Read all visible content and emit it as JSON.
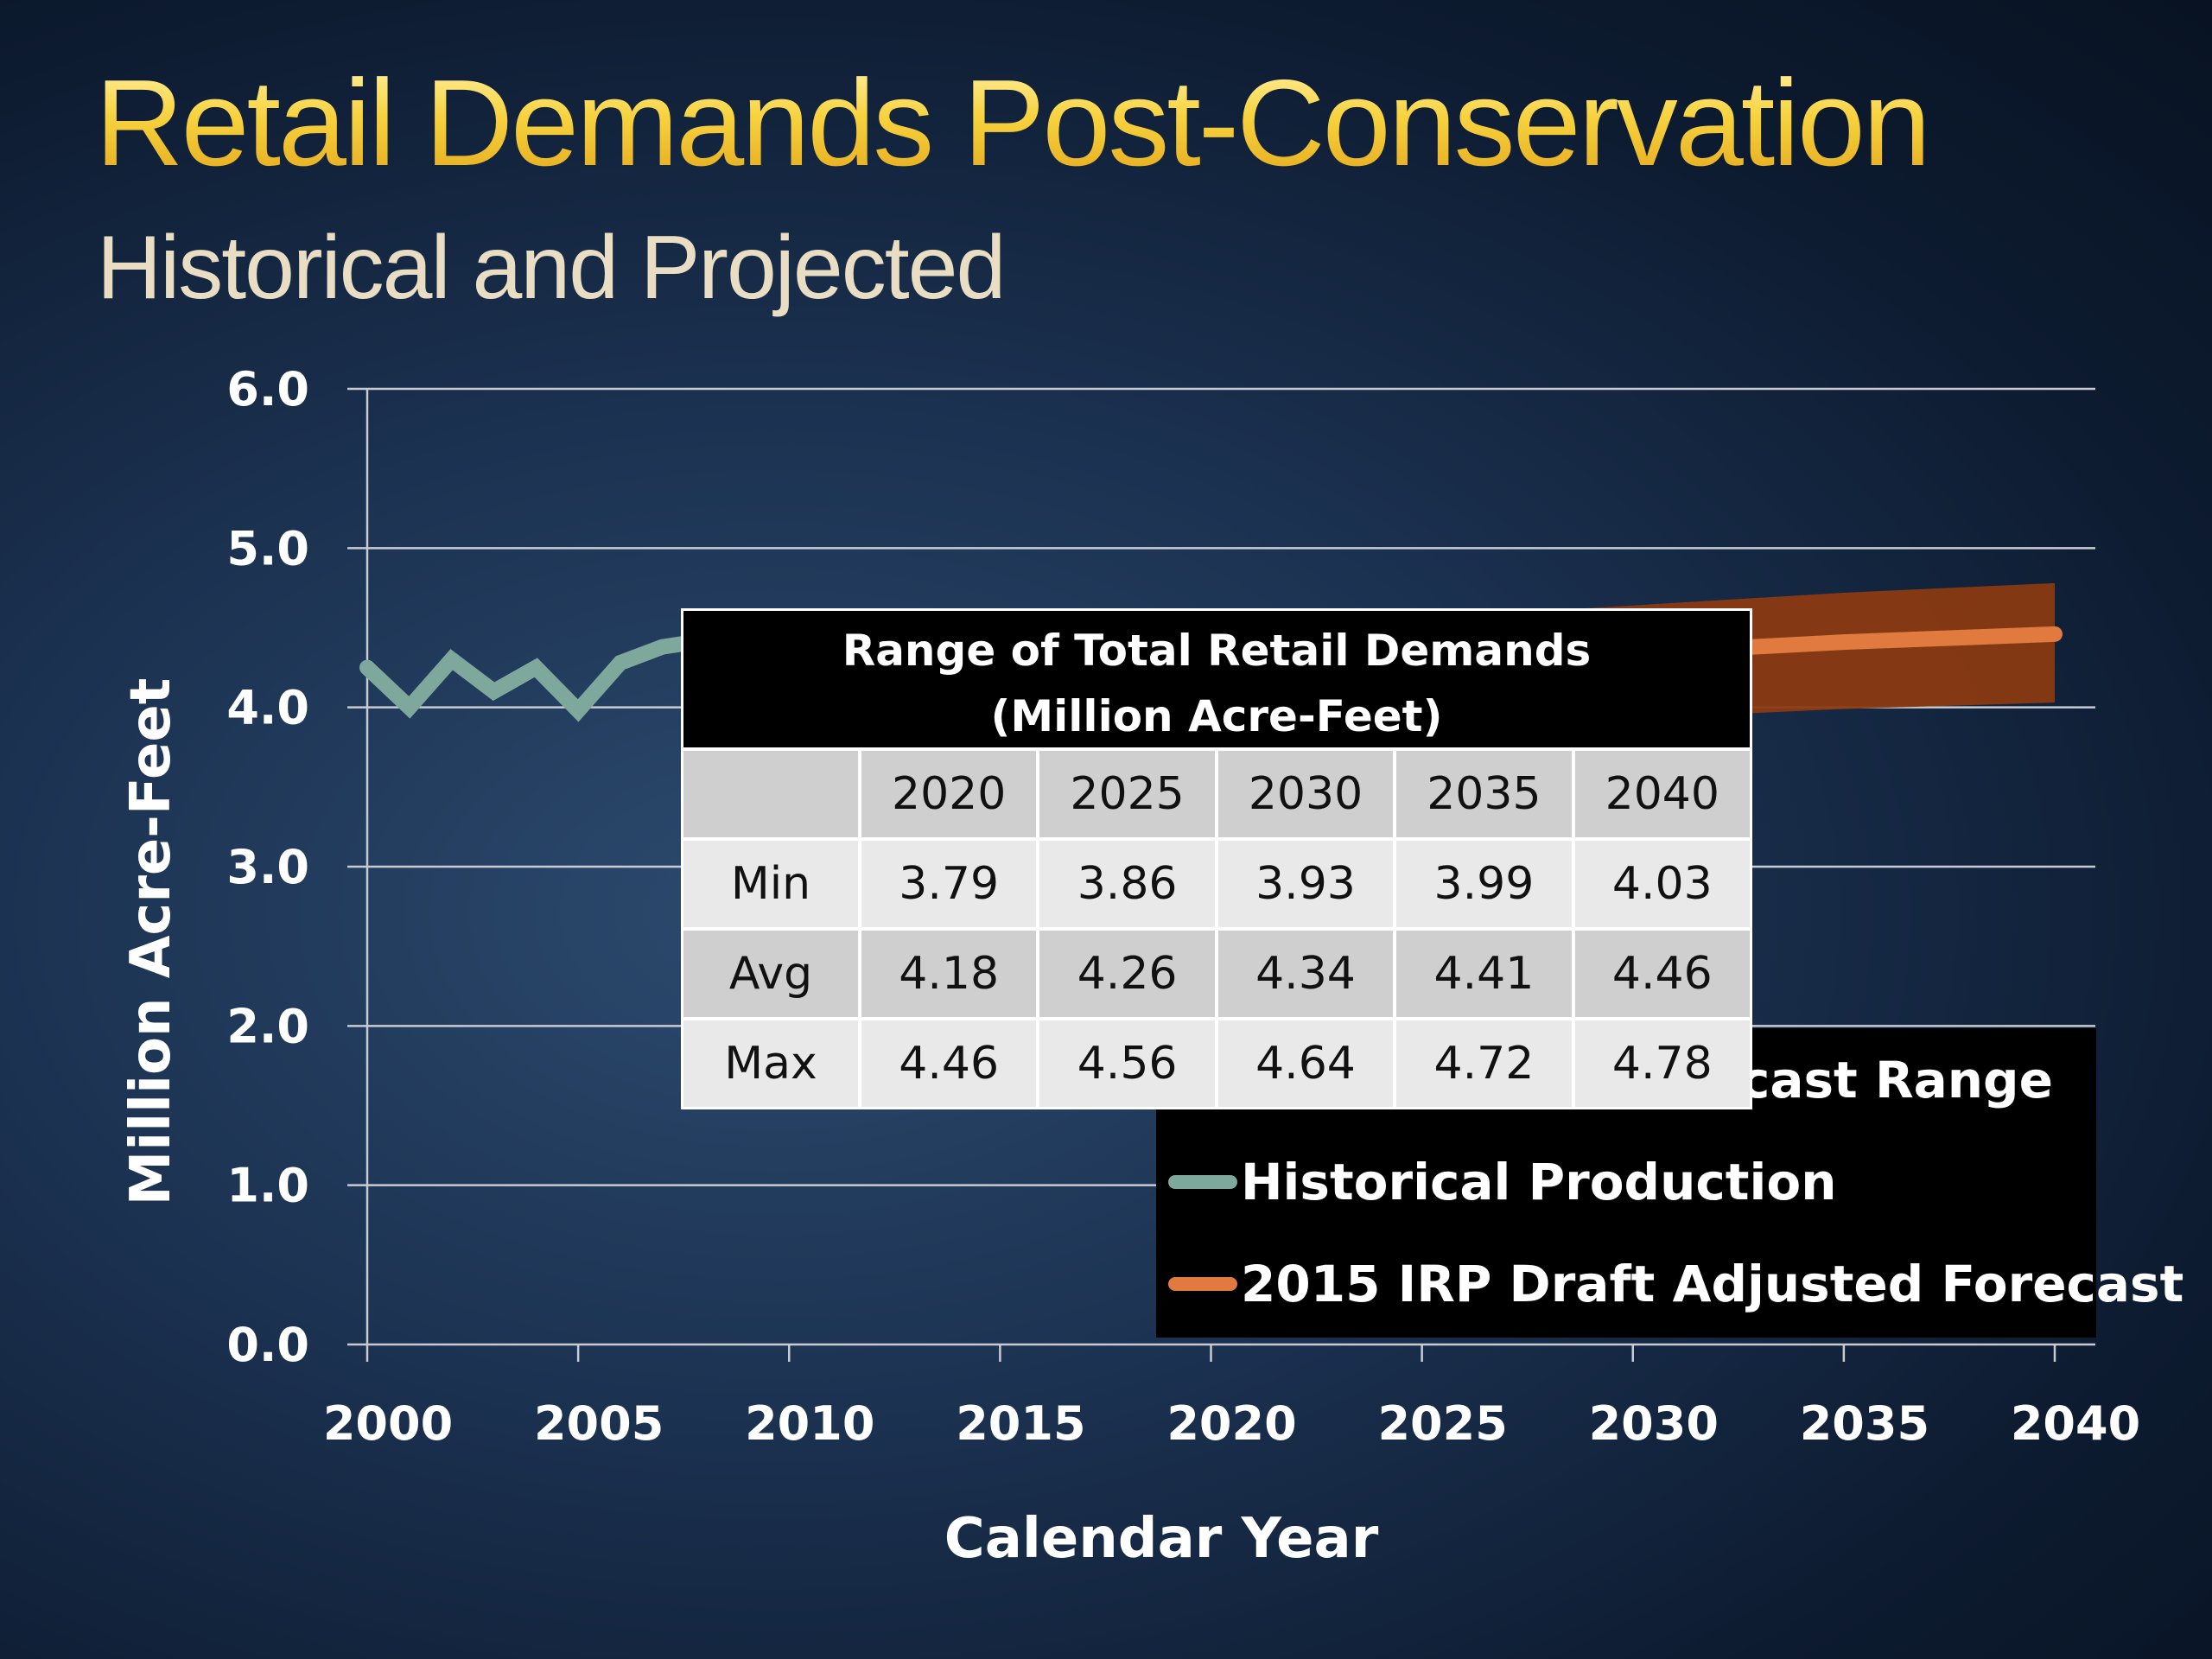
{
  "slide": {
    "title": "Retail Demands Post-Conservation",
    "subtitle": "Historical and Projected"
  },
  "colors": {
    "title_gold": "#f4cc3a",
    "historical_line": "#7fa89c",
    "forecast_line": "#e07a3e",
    "forecast_range": "#8a3a12",
    "legend_bg": "#000000"
  },
  "chart_data": {
    "type": "line",
    "xlabel": "Calendar Year",
    "ylabel": "Million Acre-Feet",
    "xlim": [
      2000,
      2040
    ],
    "ylim": [
      0,
      6
    ],
    "x_ticks": [
      "2000",
      "2005",
      "2010",
      "2015",
      "2020",
      "2025",
      "2030",
      "2035",
      "2040"
    ],
    "y_ticks": [
      "0.0",
      "1.0",
      "2.0",
      "3.0",
      "4.0",
      "5.0",
      "6.0"
    ],
    "grid": true,
    "series": [
      {
        "name": "Historical Production",
        "x": [
          2000,
          2001,
          2002,
          2003,
          2004,
          2005,
          2006,
          2007,
          2008
        ],
        "values": [
          4.25,
          4.0,
          4.3,
          4.1,
          4.25,
          3.98,
          4.28,
          4.38,
          4.42
        ]
      },
      {
        "name": "2015 IRP Draft Adjusted Forecast",
        "x": [
          2020,
          2025,
          2030,
          2035,
          2040
        ],
        "values": [
          4.18,
          4.26,
          4.34,
          4.41,
          4.46
        ]
      }
    ],
    "range": {
      "name": "Forecast Range",
      "x": [
        2020,
        2025,
        2030,
        2035,
        2040
      ],
      "min": [
        3.79,
        3.86,
        3.93,
        3.99,
        4.03
      ],
      "max": [
        4.46,
        4.56,
        4.64,
        4.72,
        4.78
      ]
    },
    "legend": {
      "placement": "bottom-right",
      "entries": [
        "cast Range",
        "Historical Production",
        "2015 IRP Draft Adjusted Forecast"
      ]
    }
  },
  "table": {
    "title_line1": "Range of Total Retail Demands",
    "title_line2": "(Million Acre-Feet)",
    "columns": [
      "",
      "2020",
      "2025",
      "2030",
      "2035",
      "2040"
    ],
    "rows": [
      [
        "Min",
        "3.79",
        "3.86",
        "3.93",
        "3.99",
        "4.03"
      ],
      [
        "Avg",
        "4.18",
        "4.26",
        "4.34",
        "4.41",
        "4.46"
      ],
      [
        "Max",
        "4.46",
        "4.56",
        "4.64",
        "4.72",
        "4.78"
      ]
    ]
  }
}
